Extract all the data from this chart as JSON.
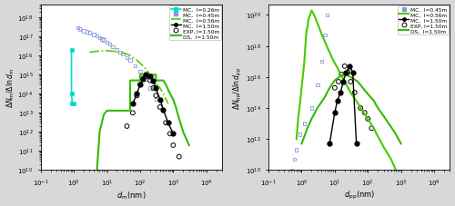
{
  "left": {
    "xlim": [
      0.1,
      30000
    ],
    "ylim": [
      10000000000.0,
      5e+18
    ],
    "series": {
      "MC_026_line": {
        "x": [
          0.85,
          0.85,
          0.9,
          0.95,
          1.0
        ],
        "y": [
          2e+16,
          100000000000000.0,
          30000000000000.0,
          30000000000000.0,
          30000000000000.0
        ],
        "color": "#00ddcc",
        "lw": 1.2,
        "markersize": 3.5
      },
      "MC_045_scatter": {
        "x": [
          1.3,
          1.5,
          2.0,
          2.5,
          3.0,
          4.0,
          5.0,
          6.0,
          7.0,
          8.0,
          10.0,
          12.0,
          15.0,
          20.0,
          25.0,
          30.0,
          40.0,
          50.0,
          70.0,
          100.0,
          150.0,
          200.0,
          300.0
        ],
        "y": [
          3e+17,
          2.5e+17,
          2e+17,
          1.8e+17,
          1.6e+17,
          1.3e+17,
          1.1e+17,
          9e+16,
          7.5e+16,
          6.5e+16,
          5e+16,
          4e+16,
          3e+16,
          2e+16,
          1.5e+16,
          1.2e+16,
          8000000000000000.0,
          6000000000000000.0,
          3000000000000000.0,
          1500000000000000.0,
          600000000000000.0,
          200000000000000.0,
          50000000000000.0
        ],
        "color": "#8899dd"
      },
      "MC_056_dashdot": {
        "x": [
          3.0,
          4.0,
          5.0,
          7.0,
          10.0,
          15.0,
          20.0,
          30.0,
          40.0,
          50.0,
          70.0,
          100.0,
          150.0,
          200.0,
          250.0,
          280.0,
          300.0,
          320.0,
          350.0,
          400.0,
          500.0,
          700.0
        ],
        "y": [
          1.5e+16,
          1.6e+16,
          1.7e+16,
          1.75e+16,
          1.8e+16,
          1.7e+16,
          1.6e+16,
          1.4e+16,
          1.2e+16,
          1e+16,
          7000000000000000.0,
          4000000000000000.0,
          2000000000000000.0,
          1000000000000000.0,
          600000000000000.0,
          400000000000000.0,
          350000000000000.0,
          300000000000000.0,
          250000000000000.0,
          200000000000000.0,
          100000000000000.0,
          30000000000000.0
        ],
        "color": "#55cc00",
        "lw": 1.2
      },
      "DS_150_solid": {
        "x": [
          5.0,
          6.0,
          7.0,
          8.0,
          10.0,
          10.01,
          50.0,
          50.01,
          100.0,
          100.01,
          300.0,
          300.01,
          500.0,
          600.0,
          800.0,
          1000.0,
          1200.0,
          1500.0,
          2000.0,
          3000.0
        ],
        "y": [
          10000000000.0,
          1000000000000.0,
          3000000000000.0,
          8000000000000.0,
          13000000000000.0,
          13000000000000.0,
          13000000000000.0,
          500000000000000.0,
          500000000000000.0,
          1000000000000000.0,
          1000000000000000.0,
          500000000000000.0,
          500000000000000.0,
          300000000000000.0,
          100000000000000.0,
          50000000000000.0,
          20000000000000.0,
          5000000000000.0,
          1000000000000.0,
          200000000000.0
        ],
        "color": "#33bb00",
        "lw": 1.5
      },
      "MC_150_filled": {
        "x": [
          60.0,
          80.0,
          100.0,
          120.0,
          150.0,
          200.0,
          250.0,
          300.0,
          400.0,
          500.0,
          700.0,
          1000.0
        ],
        "y": [
          30000000000000.0,
          100000000000000.0,
          300000000000000.0,
          600000000000000.0,
          1000000000000000.0,
          800000000000000.0,
          500000000000000.0,
          200000000000000.0,
          50000000000000.0,
          15000000000000.0,
          3000000000000.0,
          800000000000.0
        ],
        "color": "#000000",
        "markersize": 3.5,
        "lw": 1.0
      },
      "EXP_150": {
        "x": [
          40.0,
          60.0,
          80.0,
          100.0,
          120.0,
          150.0,
          200.0,
          250.0,
          300.0,
          400.0,
          600.0,
          800.0,
          1000.0,
          1500.0
        ],
        "y": [
          2000000000000.0,
          10000000000000.0,
          80000000000000.0,
          300000000000000.0,
          600000000000000.0,
          800000000000000.0,
          500000000000000.0,
          200000000000000.0,
          80000000000000.0,
          20000000000000.0,
          3000000000000.0,
          800000000000.0,
          200000000000.0,
          50000000000.0
        ],
        "color": "#000000",
        "markersize": 4.5
      }
    }
  },
  "right": {
    "xlim": [
      0.1,
      30000
    ],
    "ylim": [
      10000000000.0,
      5e+20
    ],
    "series": {
      "MC_045_scatter": {
        "x": [
          0.5,
          0.6,
          0.7,
          0.9,
          1.2,
          2.0,
          3.0,
          4.0,
          5.0,
          6.0
        ],
        "y": [
          10000000000.0,
          50000000000.0,
          200000000000.0,
          2000000000000.0,
          10000000000000.0,
          100000000000000.0,
          3000000000000000.0,
          1e+17,
          5e+18,
          1e+20
        ],
        "color": "#8899dd"
      },
      "MC_056_line": {
        "x": [
          0.7,
          0.8,
          0.9,
          1.0,
          1.2,
          1.4,
          1.5,
          1.6,
          1.8,
          2.0,
          2.5,
          3.0,
          4.0,
          5.0,
          6.0,
          7.0,
          8.0,
          10.0,
          12.0,
          15.0,
          20.0,
          30.0,
          50.0,
          70.0,
          100.0,
          150.0,
          200.0,
          300.0,
          500.0,
          700.0,
          1000.0
        ],
        "y": [
          1000000000000.0,
          30000000000000.0,
          200000000000000.0,
          2000000000000000.0,
          8e+16,
          1e+19,
          1.5e+19,
          5e+19,
          1e+20,
          2e+20,
          8e+19,
          3e+19,
          6e+18,
          2e+18,
          8e+17,
          4e+17,
          2e+17,
          8e+16,
          4e+16,
          1.5e+16,
          5000000000000000.0,
          1000000000000000.0,
          200000000000000.0,
          60000000000000.0,
          20000000000000.0,
          5000000000000.0,
          1500000000000.0,
          300000000000.0,
          50000000000.0,
          10000000000.0,
          3000000000.0
        ],
        "color": "#44cc00",
        "lw": 1.5
      },
      "DS_150_solid": {
        "x": [
          1.0,
          1.5,
          2.0,
          3.0,
          5.0,
          7.0,
          10.0,
          15.0,
          20.0,
          30.0,
          50.0,
          70.0,
          100.0,
          150.0,
          200.0,
          300.0,
          500.0,
          700.0,
          1000.0
        ],
        "y": [
          500000000000.0,
          5000000000000.0,
          20000000000000.0,
          100000000000000.0,
          500000000000000.0,
          2000000000000000.0,
          6000000000000000.0,
          1.2e+16,
          1.5e+16,
          1e+16,
          5000000000000000.0,
          2000000000000000.0,
          800000000000000.0,
          300000000000000.0,
          100000000000000.0,
          30000000000000.0,
          6000000000000.0,
          2000000000000.0,
          500000000000.0
        ],
        "color": "#33bb00",
        "lw": 1.5
      },
      "MC_150_filled": {
        "x": [
          7.0,
          10.0,
          12.0,
          15.0,
          18.0,
          22.0,
          28.0,
          35.0,
          45.0
        ],
        "y": [
          500000000000.0,
          50000000000000.0,
          300000000000000.0,
          1000000000000000.0,
          5000000000000000.0,
          2e+16,
          5e+16,
          2e+16,
          500000000000.0
        ],
        "color": "#000000",
        "markersize": 3.5,
        "lw": 1.0
      },
      "EXP_150": {
        "x": [
          10.0,
          13.0,
          16.0,
          20.0,
          25.0,
          30.0,
          40.0,
          60.0,
          80.0,
          100.0,
          130.0
        ],
        "y": [
          2000000000000000.0,
          5000000000000000.0,
          1.5e+16,
          5e+16,
          2e+16,
          5000000000000000.0,
          1000000000000000.0,
          100000000000000.0,
          50000000000000.0,
          20000000000000.0,
          5000000000000.0
        ],
        "color": "#000000",
        "markersize": 4.5
      }
    }
  },
  "bg_color": "#d8d8d8",
  "plot_bg": "#ffffff",
  "left_legend": [
    {
      "label": "MC,  l=0.26m",
      "color": "#00ddcc",
      "style": "line_square"
    },
    {
      "label": "MC,  l=0.45m",
      "color": "#8899dd",
      "style": "square"
    },
    {
      "label": "MC,  l=0.56m",
      "color": "#55cc00",
      "style": "dashdot"
    },
    {
      "label": "MC,  l=1.50m",
      "color": "#000000",
      "style": "filled_dot_line"
    },
    {
      "label": "EXP, l=1.50m",
      "color": "#000000",
      "style": "open_circle"
    },
    {
      "label": "DS,  l=1.50m",
      "color": "#33bb00",
      "style": "solid"
    }
  ],
  "right_legend": [
    {
      "label": "MC,  l=0.45m",
      "color": "#8899dd",
      "style": "square"
    },
    {
      "label": "MC,  l=0.56m",
      "color": "#44cc00",
      "style": "solid"
    },
    {
      "label": "MC,  l=1.50m",
      "color": "#000000",
      "style": "filled_dot_line"
    },
    {
      "label": "EXP, l=1.50m",
      "color": "#000000",
      "style": "open_circle"
    },
    {
      "label": "DS,  l=1.50m",
      "color": "#33bb00",
      "style": "solid"
    }
  ]
}
